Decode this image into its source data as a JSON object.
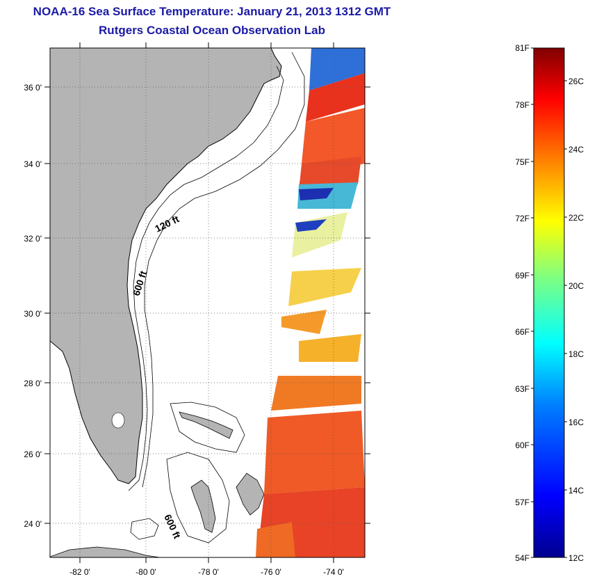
{
  "header": {
    "title": "NOAA-16 Sea Surface Temperature:  January 21, 2013 1312 GMT",
    "subtitle": "Rutgers Coastal Ocean Observation Lab"
  },
  "map": {
    "lat_labels": [
      "36 0'",
      "34 0'",
      "32 0'",
      "30 0'",
      "28 0'",
      "26 0'",
      "24 0'"
    ],
    "lon_labels": [
      "-82 0'",
      "-80 0'",
      "-78 0'",
      "-76 0'",
      "-74 0'"
    ],
    "contour_labels": {
      "shallow": "120 ft",
      "deep": "600 ft",
      "deep_south": "600 ft"
    },
    "colors": {
      "land": "#b4b4b4",
      "ocean": "#ffffff",
      "grid": "#555555"
    }
  },
  "colorbar": {
    "fahrenheit_labels": [
      "81F",
      "78F",
      "75F",
      "72F",
      "69F",
      "66F",
      "63F",
      "60F",
      "57F",
      "54F"
    ],
    "celsius_labels": [
      "26C",
      "24C",
      "22C",
      "20C",
      "18C",
      "16C",
      "14C",
      "12C"
    ],
    "range_f": [
      54,
      81
    ],
    "range_c": [
      12,
      27
    ]
  }
}
